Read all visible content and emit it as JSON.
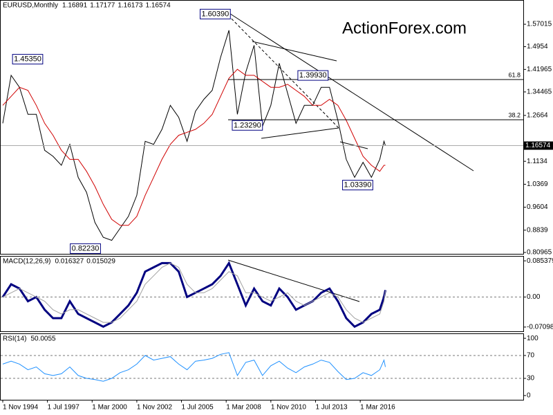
{
  "chart_data": [
    {
      "type": "line",
      "title": "EURUSD,Monthly",
      "ohlc": [
        1.16891,
        1.17177,
        1.16173,
        1.16574
      ],
      "watermark": "ActionForex.com",
      "x": [
        "1994-11",
        "1995-05",
        "1995-11",
        "1996-05",
        "1996-11",
        "1997-05",
        "1997-11",
        "1998-05",
        "1998-11",
        "1999-05",
        "1999-11",
        "2000-05",
        "2000-11",
        "2001-05",
        "2001-11",
        "2002-05",
        "2002-11",
        "2003-05",
        "2003-11",
        "2004-05",
        "2004-11",
        "2005-05",
        "2005-11",
        "2006-05",
        "2006-11",
        "2007-05",
        "2007-11",
        "2008-05",
        "2008-11",
        "2009-05",
        "2009-11",
        "2010-05",
        "2010-11",
        "2011-05",
        "2011-11",
        "2012-05",
        "2012-11",
        "2013-05",
        "2013-11",
        "2014-05",
        "2014-11",
        "2015-05",
        "2015-11",
        "2016-05",
        "2016-11",
        "2017-05",
        "2017-08",
        "2017-09"
      ],
      "series": [
        {
          "color": "#000000",
          "values": [
            1.24,
            1.4,
            1.36,
            1.27,
            1.27,
            1.15,
            1.13,
            1.1,
            1.17,
            1.06,
            1.01,
            0.91,
            0.86,
            0.85,
            0.89,
            0.93,
            1.0,
            1.18,
            1.17,
            1.22,
            1.3,
            1.26,
            1.18,
            1.28,
            1.32,
            1.35,
            1.46,
            1.55,
            1.27,
            1.41,
            1.5,
            1.23,
            1.3,
            1.44,
            1.34,
            1.24,
            1.3,
            1.3,
            1.36,
            1.36,
            1.25,
            1.12,
            1.06,
            1.11,
            1.06,
            1.12,
            1.18,
            1.16574
          ]
        },
        {
          "color": "#d00000",
          "values": [
            1.3,
            1.33,
            1.36,
            1.35,
            1.3,
            1.24,
            1.2,
            1.15,
            1.12,
            1.12,
            1.08,
            1.03,
            0.97,
            0.92,
            0.9,
            0.9,
            0.93,
            1.0,
            1.06,
            1.12,
            1.17,
            1.2,
            1.21,
            1.22,
            1.24,
            1.27,
            1.33,
            1.39,
            1.42,
            1.4,
            1.4,
            1.38,
            1.36,
            1.36,
            1.37,
            1.35,
            1.33,
            1.3,
            1.3,
            1.32,
            1.3,
            1.25,
            1.19,
            1.13,
            1.1,
            1.08,
            1.1,
            1.1
          ]
        }
      ],
      "annotations": [
        {
          "x": "2008-07",
          "y": 1.6039,
          "text": "1.60390"
        },
        {
          "x": "1995-04",
          "y": 1.4535,
          "text": "1.45350"
        },
        {
          "x": "2014-05",
          "y": 1.3993,
          "text": "1.39930"
        },
        {
          "x": "2010-06",
          "y": 1.2329,
          "text": "1.23290"
        },
        {
          "x": "2017-01",
          "y": 1.0339,
          "text": "1.03390"
        },
        {
          "x": "2000-10",
          "y": 0.8223,
          "text": "0.82230"
        }
      ],
      "fib_levels": [
        {
          "ratio": 61.8,
          "price": 1.386
        },
        {
          "ratio": 38.2,
          "price": 1.252
        }
      ],
      "last_price": 1.16574,
      "ylim": [
        0.805,
        1.651
      ],
      "yticks": [
        1.57015,
        1.4954,
        1.41965,
        1.34465,
        1.2664,
        1.1134,
        1.0369,
        0.9604,
        0.8839,
        0.80965
      ],
      "xticks": [
        {
          "value": "1994-11",
          "label": "1 Nov 1994"
        },
        {
          "value": "1997-07",
          "label": "1 Jul 1997"
        },
        {
          "value": "2000-03",
          "label": "1 Mar 2000"
        },
        {
          "value": "2002-11",
          "label": "1 Nov 2002"
        },
        {
          "value": "2005-07",
          "label": "1 Jul 2005"
        },
        {
          "value": "2008-03",
          "label": "1 Mar 2008"
        },
        {
          "value": "2010-11",
          "label": "1 Nov 2010"
        },
        {
          "value": "2013-07",
          "label": "1 Jul 2013"
        },
        {
          "value": "2016-03",
          "label": "1 Mar 2016"
        }
      ]
    },
    {
      "type": "line",
      "title": "MACD(12,26,9)",
      "header_values": [
        0.016327,
        0.015029
      ],
      "series": [
        {
          "color": "#000080",
          "values": [
            0.0,
            0.03,
            0.02,
            -0.01,
            0.0,
            -0.03,
            -0.05,
            -0.05,
            -0.01,
            -0.04,
            -0.05,
            -0.06,
            -0.07,
            -0.06,
            -0.04,
            -0.02,
            0.01,
            0.06,
            0.07,
            0.08,
            0.08,
            0.06,
            0.0,
            0.01,
            0.02,
            0.03,
            0.05,
            0.08,
            0.03,
            -0.02,
            0.02,
            -0.01,
            -0.02,
            0.02,
            0.0,
            -0.03,
            -0.02,
            -0.01,
            0.01,
            0.02,
            -0.01,
            -0.05,
            -0.07,
            -0.06,
            -0.04,
            -0.03,
            0.0,
            0.016327
          ]
        },
        {
          "color": "#a0a0a0",
          "values": [
            0.0,
            0.01,
            0.02,
            0.01,
            0.0,
            -0.01,
            -0.03,
            -0.04,
            -0.03,
            -0.03,
            -0.04,
            -0.05,
            -0.06,
            -0.06,
            -0.05,
            -0.03,
            -0.01,
            0.03,
            0.05,
            0.07,
            0.08,
            0.07,
            0.03,
            0.01,
            0.01,
            0.02,
            0.04,
            0.06,
            0.05,
            0.01,
            0.01,
            0.0,
            -0.01,
            0.0,
            0.01,
            -0.01,
            -0.02,
            -0.01,
            0.0,
            0.01,
            0.0,
            -0.03,
            -0.05,
            -0.06,
            -0.05,
            -0.04,
            -0.01,
            0.015029
          ]
        }
      ],
      "dashed_levels": [
        0
      ],
      "ylim": [
        -0.081,
        0.097
      ],
      "yticks": [
        0.085379,
        {
          "value": 0,
          "label": "0.00"
        },
        -0.070989
      ]
    },
    {
      "type": "line",
      "title": "RSI(14)",
      "header_values": [
        50.0055
      ],
      "series": [
        {
          "color": "#1e90ff",
          "values": [
            55,
            60,
            55,
            45,
            50,
            38,
            35,
            38,
            50,
            35,
            30,
            28,
            25,
            30,
            40,
            45,
            55,
            70,
            62,
            65,
            68,
            55,
            45,
            60,
            62,
            65,
            72,
            75,
            35,
            58,
            62,
            35,
            52,
            60,
            48,
            40,
            50,
            55,
            62,
            58,
            42,
            28,
            30,
            40,
            35,
            45,
            62,
            50.0055
          ]
        }
      ],
      "dashed_levels": [
        70,
        30
      ],
      "ylim": [
        -7.4,
        108.6
      ],
      "yticks": [
        100,
        70,
        30,
        0
      ]
    }
  ]
}
